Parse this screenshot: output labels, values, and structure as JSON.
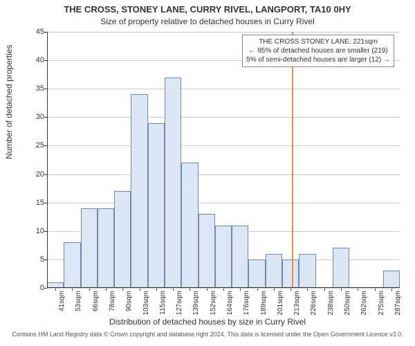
{
  "chart": {
    "type": "histogram",
    "title1": "THE CROSS, STONEY LANE, CURRY RIVEL, LANGPORT, TA10 0HY",
    "title2": "Size of property relative to detached houses in Curry Rivel",
    "title1_fontsize": 13,
    "title2_fontsize": 12,
    "ylabel": "Number of detached properties",
    "xlabel": "Distribution of detached houses by size in Curry Rivel",
    "label_fontsize": 12,
    "tick_fontsize": 11,
    "xtick_fontsize": 10,
    "ylim": [
      0,
      45
    ],
    "ytick_step": 5,
    "yticks": [
      0,
      5,
      10,
      15,
      20,
      25,
      30,
      35,
      40,
      45
    ],
    "categories": [
      "41sqm",
      "53sqm",
      "66sqm",
      "78sqm",
      "90sqm",
      "103sqm",
      "115sqm",
      "127sqm",
      "139sqm",
      "152sqm",
      "164sqm",
      "176sqm",
      "189sqm",
      "201sqm",
      "213sqm",
      "226sqm",
      "238sqm",
      "250sqm",
      "262sqm",
      "275sqm",
      "287sqm"
    ],
    "values": [
      1,
      8,
      14,
      14,
      17,
      34,
      29,
      37,
      22,
      13,
      11,
      11,
      5,
      6,
      5,
      6,
      0,
      7,
      0,
      0,
      3
    ],
    "bar_fill": "#dbe7f5",
    "bar_border": "#6f8ab0",
    "bar_width": 1.0,
    "marker_position": 14.6,
    "marker_color": "#e38c4f",
    "marker_width": 2,
    "background_color": "#ffffff",
    "grid_color": "#cccccc",
    "axis_color": "#333333",
    "annotation": {
      "line1": "THE CROSS STONEY LANE: 221sqm",
      "line2": "← 95% of detached houses are smaller (219)",
      "line3": "5% of semi-detached houses are larger (12) →",
      "fontsize": 10,
      "border_color": "#888888",
      "bg_color": "rgba(255,255,255,0.95)"
    },
    "footer": "Contains HM Land Registry data © Crown copyright and database right 2024. This data is licensed under the Open Government Licence v3.0.",
    "footer_fontsize": 9,
    "footer_color": "#555555"
  }
}
